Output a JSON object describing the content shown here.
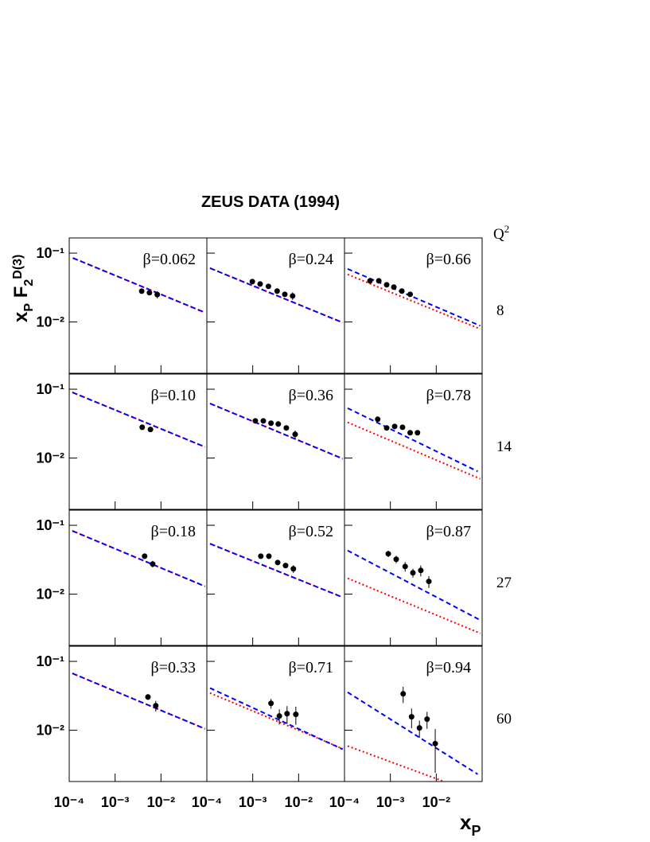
{
  "figure": {
    "title": "ZEUS DATA (1994)",
    "x_label": [
      "x",
      "P"
    ],
    "y_label": [
      "x",
      "P",
      " F",
      "2",
      "D(3)"
    ],
    "q2_label": [
      "Q",
      "2"
    ],
    "q2_values": [
      "8",
      "14",
      "27",
      "60"
    ],
    "xscale": "log",
    "yscale": "log",
    "xlim": [
      0.0001,
      0.1
    ],
    "ylim": [
      0.0018,
      0.166
    ],
    "xticks": [
      {
        "value": 0.0001,
        "label": "10⁻⁴"
      },
      {
        "value": 0.001,
        "label": "10⁻³"
      },
      {
        "value": 0.01,
        "label": "10⁻²"
      }
    ],
    "yticks": [
      {
        "value": 0.01,
        "label": "10⁻²"
      },
      {
        "value": 0.1,
        "label": "10⁻¹"
      }
    ]
  },
  "chart_data": [
    {
      "type": "scatter",
      "title": "β=0.062",
      "x": [
        0.0038,
        0.0056,
        0.0083
      ],
      "values": [
        0.028,
        0.0266,
        0.025
      ],
      "errors": [
        0.002,
        0.002,
        0.003
      ],
      "color": "#000000",
      "models": [
        {
          "x": [
            0.00012,
            0.091
          ],
          "values": [
            0.085,
            0.0137
          ],
          "color": "#ff0000",
          "style": "dotted"
        },
        {
          "x": [
            0.00012,
            0.091
          ],
          "values": [
            0.085,
            0.0137
          ],
          "color": "#0000ff",
          "style": "dashed"
        }
      ]
    },
    {
      "type": "scatter",
      "title": "β=0.24",
      "x": [
        0.00098,
        0.00145,
        0.0022,
        0.0034,
        0.005,
        0.0074
      ],
      "values": [
        0.0386,
        0.0356,
        0.0329,
        0.0281,
        0.0252,
        0.0239
      ],
      "errors": [
        0.002,
        0.002,
        0.002,
        0.002,
        0.002,
        0.003
      ],
      "color": "#000000",
      "models": [
        {
          "x": [
            0.000117,
            0.091
          ],
          "values": [
            0.0605,
            0.0098
          ],
          "color": "#ff0000",
          "style": "dotted"
        },
        {
          "x": [
            0.000117,
            0.091
          ],
          "values": [
            0.0605,
            0.0098
          ],
          "color": "#0000ff",
          "style": "dashed"
        }
      ]
    },
    {
      "type": "scatter",
      "title": "β=0.66",
      "x": [
        0.00036,
        0.00056,
        0.00083,
        0.00119,
        0.00178,
        0.0027
      ],
      "values": [
        0.0396,
        0.0396,
        0.0347,
        0.0321,
        0.0281,
        0.0252
      ],
      "errors": [
        0.002,
        0.002,
        0.002,
        0.002,
        0.002,
        0.002
      ],
      "color": "#000000",
      "models": [
        {
          "x": [
            0.000117,
            0.091
          ],
          "values": [
            0.049,
            0.0079
          ],
          "color": "#ff0000",
          "style": "dotted"
        },
        {
          "x": [
            0.000117,
            0.091
          ],
          "values": [
            0.059,
            0.0088
          ],
          "color": "#0000ff",
          "style": "dashed"
        }
      ]
    },
    {
      "type": "scatter",
      "title": "β=0.10",
      "x": [
        0.0039,
        0.0059
      ],
      "values": [
        0.028,
        0.026
      ],
      "errors": [
        0.002,
        0.002
      ],
      "color": "#000000",
      "models": [
        {
          "x": [
            0.000117,
            0.091
          ],
          "values": [
            0.09,
            0.0145
          ],
          "color": "#ff0000",
          "style": "dotted"
        },
        {
          "x": [
            0.000117,
            0.091
          ],
          "values": [
            0.09,
            0.0145
          ],
          "color": "#0000ff",
          "style": "dashed"
        }
      ]
    },
    {
      "type": "scatter",
      "title": "β=0.36",
      "x": [
        0.00114,
        0.0017,
        0.0025,
        0.0036,
        0.0054,
        0.0084
      ],
      "values": [
        0.0347,
        0.0347,
        0.0321,
        0.0312,
        0.0274,
        0.0221
      ],
      "errors": [
        0.002,
        0.002,
        0.002,
        0.002,
        0.002,
        0.003
      ],
      "color": "#000000",
      "models": [
        {
          "x": [
            0.000117,
            0.091
          ],
          "values": [
            0.062,
            0.0098
          ],
          "color": "#ff0000",
          "style": "dotted"
        },
        {
          "x": [
            0.000117,
            0.091
          ],
          "values": [
            0.062,
            0.0098
          ],
          "color": "#0000ff",
          "style": "dashed"
        }
      ]
    },
    {
      "type": "scatter",
      "title": "β=0.78",
      "x": [
        0.00053,
        0.00083,
        0.00124,
        0.00184,
        0.0027,
        0.0039
      ],
      "values": [
        0.0366,
        0.0274,
        0.0288,
        0.028,
        0.0233,
        0.0233
      ],
      "errors": [
        0.003,
        0.002,
        0.002,
        0.002,
        0.002,
        0.002
      ],
      "color": "#000000",
      "models": [
        {
          "x": [
            0.000117,
            0.091
          ],
          "values": [
            0.033,
            0.005
          ],
          "color": "#ff0000",
          "style": "dotted"
        },
        {
          "x": [
            0.000117,
            0.08
          ],
          "values": [
            0.053,
            0.0064
          ],
          "color": "#0000ff",
          "style": "dashed"
        }
      ]
    },
    {
      "type": "scatter",
      "title": "β=0.18",
      "x": [
        0.0044,
        0.0066
      ],
      "values": [
        0.0356,
        0.0274
      ],
      "errors": [
        0.003,
        0.003
      ],
      "color": "#000000",
      "models": [
        {
          "x": [
            0.000117,
            0.091
          ],
          "values": [
            0.083,
            0.013
          ],
          "color": "#ff0000",
          "style": "dotted"
        },
        {
          "x": [
            0.000117,
            0.091
          ],
          "values": [
            0.083,
            0.013
          ],
          "color": "#0000ff",
          "style": "dashed"
        }
      ]
    },
    {
      "type": "scatter",
      "title": "β=0.52",
      "x": [
        0.0015,
        0.00225,
        0.0035,
        0.0052,
        0.0077
      ],
      "values": [
        0.0356,
        0.0356,
        0.0288,
        0.026,
        0.0233
      ],
      "errors": [
        0.002,
        0.002,
        0.002,
        0.002,
        0.003
      ],
      "color": "#000000",
      "models": [
        {
          "x": [
            0.000117,
            0.091
          ],
          "values": [
            0.054,
            0.009
          ],
          "color": "#ff0000",
          "style": "dotted"
        },
        {
          "x": [
            0.000117,
            0.091
          ],
          "values": [
            0.054,
            0.009
          ],
          "color": "#0000ff",
          "style": "dashed"
        }
      ]
    },
    {
      "type": "scatter",
      "title": "β=0.87",
      "x": [
        0.0009,
        0.00134,
        0.0021,
        0.0031,
        0.0046,
        0.0069
      ],
      "values": [
        0.0386,
        0.0321,
        0.0252,
        0.0204,
        0.0221,
        0.0153
      ],
      "errors": [
        0.004,
        0.004,
        0.004,
        0.003,
        0.004,
        0.003
      ],
      "color": "#000000",
      "models": [
        {
          "x": [
            0.000117,
            0.091
          ],
          "values": [
            0.017,
            0.0027
          ],
          "color": "#ff0000",
          "style": "dotted"
        },
        {
          "x": [
            0.000117,
            0.091
          ],
          "values": [
            0.043,
            0.0042
          ],
          "color": "#0000ff",
          "style": "dashed"
        }
      ]
    },
    {
      "type": "scatter",
      "title": "β=0.33",
      "x": [
        0.0052,
        0.0077
      ],
      "values": [
        0.0304,
        0.0227
      ],
      "errors": [
        0.003,
        0.004
      ],
      "color": "#000000",
      "models": [
        {
          "x": [
            0.000117,
            0.091
          ],
          "values": [
            0.067,
            0.0105
          ],
          "color": "#ff0000",
          "style": "dotted"
        },
        {
          "x": [
            0.000117,
            0.091
          ],
          "values": [
            0.067,
            0.0105
          ],
          "color": "#0000ff",
          "style": "dashed"
        }
      ]
    },
    {
      "type": "scatter",
      "title": "β=0.71",
      "x": [
        0.0025,
        0.0038,
        0.0056,
        0.0087
      ],
      "values": [
        0.0246,
        0.0161,
        0.0174,
        0.017
      ],
      "errors": [
        0.004,
        0.004,
        0.005,
        0.005
      ],
      "color": "#000000",
      "models": [
        {
          "x": [
            0.000117,
            0.091
          ],
          "values": [
            0.0347,
            0.0054
          ],
          "color": "#ff0000",
          "style": "dotted"
        },
        {
          "x": [
            0.000117,
            0.091
          ],
          "values": [
            0.041,
            0.0053
          ],
          "color": "#0000ff",
          "style": "dashed"
        }
      ]
    },
    {
      "type": "scatter",
      "title": "β=0.94",
      "x": [
        0.0019,
        0.0029,
        0.0043,
        0.0063,
        0.0095
      ],
      "values": [
        0.0338,
        0.0157,
        0.0108,
        0.0145,
        0.0064
      ],
      "errors": [
        0.009,
        0.005,
        0.003,
        0.004,
        0.004
      ],
      "color": "#000000",
      "models": [
        {
          "x": [
            0.000117,
            0.0135
          ],
          "values": [
            0.0059,
            0.00184
          ],
          "color": "#ff0000",
          "style": "dotted"
        },
        {
          "x": [
            0.000117,
            0.08
          ],
          "values": [
            0.0356,
            0.0023
          ],
          "color": "#0000ff",
          "style": "dashed"
        }
      ]
    }
  ]
}
